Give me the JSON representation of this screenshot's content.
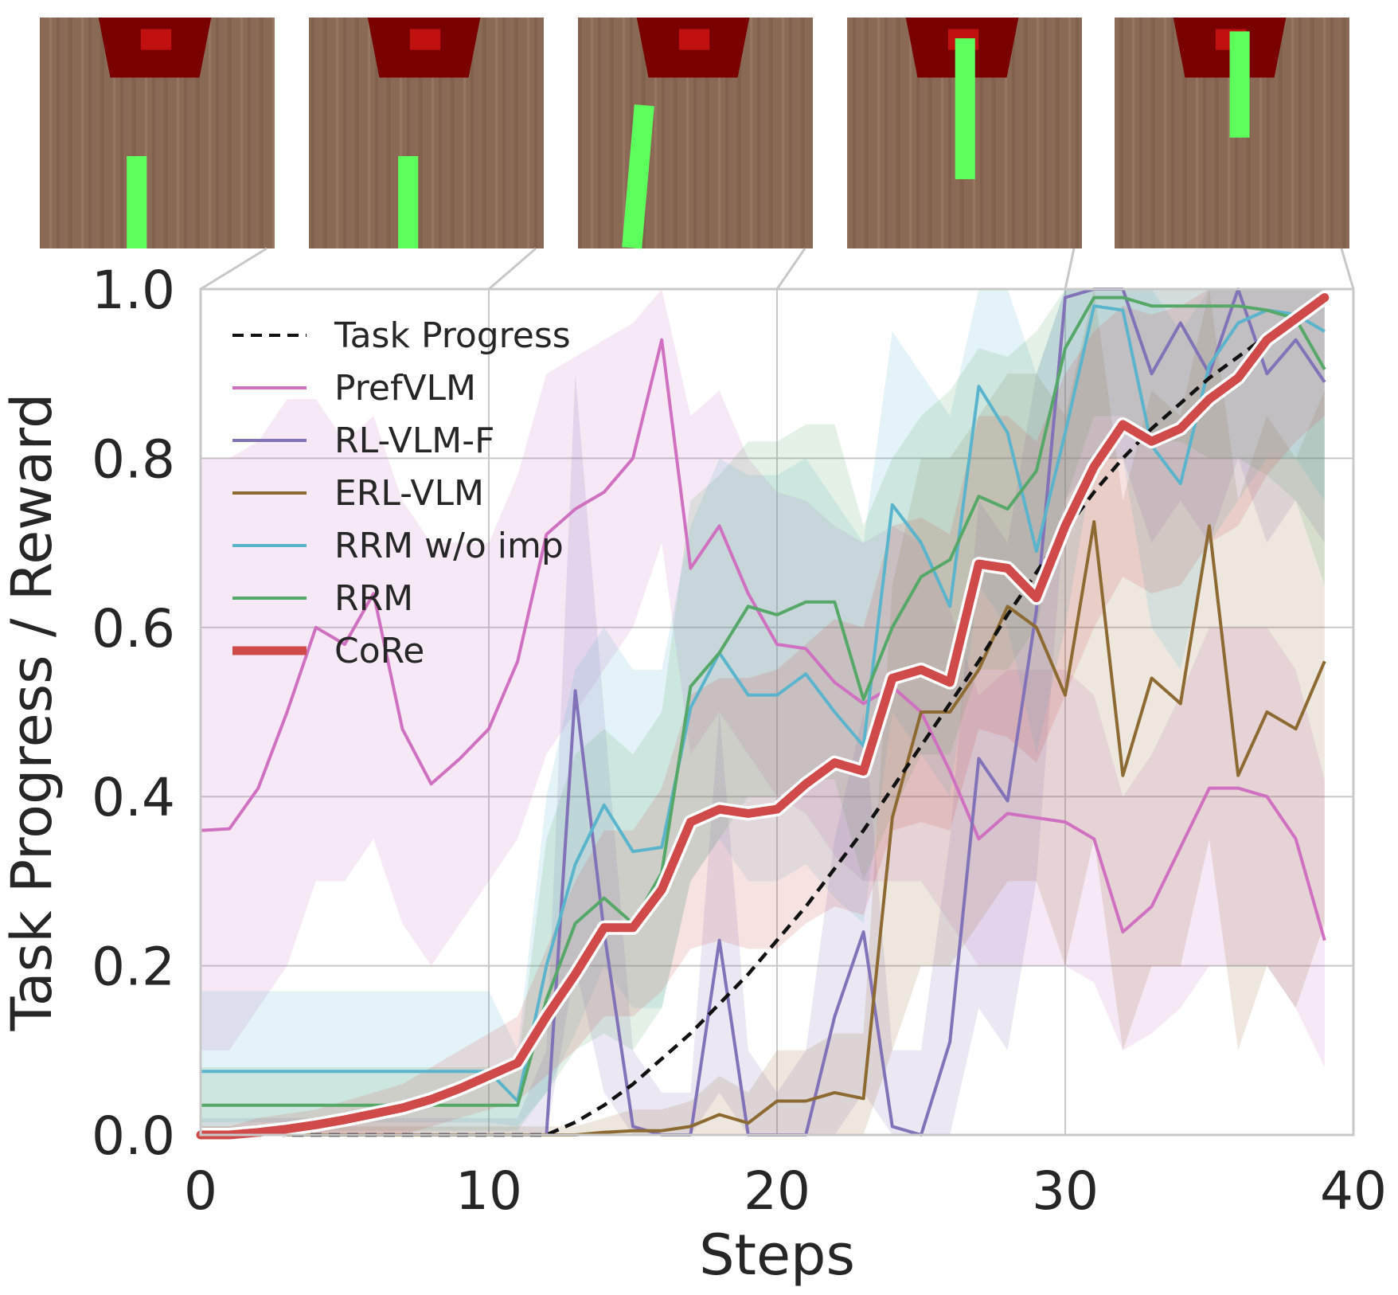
{
  "chart_data": {
    "type": "line",
    "title": "",
    "xlabel": "Steps",
    "ylabel": "Task Progress / Reward",
    "xlim": [
      0,
      40
    ],
    "ylim": [
      0,
      1.0
    ],
    "xticks": [
      "0",
      "10",
      "20",
      "30",
      "40"
    ],
    "yticks": [
      "0.0",
      "0.2",
      "0.4",
      "0.6",
      "0.8",
      "1.0"
    ],
    "grid": true,
    "legend_position": "top-left",
    "x": [
      0,
      1,
      2,
      3,
      4,
      5,
      6,
      7,
      8,
      9,
      10,
      11,
      12,
      13,
      14,
      15,
      16,
      17,
      18,
      19,
      20,
      21,
      22,
      23,
      24,
      25,
      26,
      27,
      28,
      29,
      30,
      31,
      32,
      33,
      34,
      35,
      36,
      37,
      38,
      39
    ],
    "series": [
      {
        "name": "Task Progress",
        "color": "#111111",
        "style": "dashed",
        "values": [
          0,
          0,
          0,
          0,
          0,
          0,
          0,
          0,
          0,
          0,
          0,
          0,
          0,
          0.015,
          0.035,
          0.06,
          0.09,
          0.12,
          0.155,
          0.19,
          0.23,
          0.27,
          0.315,
          0.36,
          0.41,
          0.46,
          0.51,
          0.56,
          0.615,
          0.665,
          0.715,
          0.76,
          0.8,
          0.835,
          0.865,
          0.895,
          0.92,
          0.945,
          0.965,
          0.985
        ]
      },
      {
        "name": "PrefVLM",
        "color": "#d070c0",
        "values": [
          0.36,
          0.362,
          0.41,
          0.5,
          0.6,
          0.58,
          0.64,
          0.48,
          0.415,
          0.445,
          0.48,
          0.56,
          0.71,
          0.74,
          0.76,
          0.8,
          0.94,
          0.67,
          0.72,
          0.64,
          0.58,
          0.575,
          0.535,
          0.51,
          0.53,
          0.5,
          0.43,
          0.35,
          0.38,
          0.375,
          0.37,
          0.35,
          0.24,
          0.27,
          0.34,
          0.41,
          0.41,
          0.4,
          0.35,
          0.23
        ],
        "band_lo": [
          0.1,
          0.1,
          0.15,
          0.2,
          0.3,
          0.3,
          0.35,
          0.25,
          0.2,
          0.25,
          0.3,
          0.35,
          0.45,
          0.5,
          0.55,
          0.6,
          0.7,
          0.45,
          0.5,
          0.45,
          0.4,
          0.38,
          0.33,
          0.3,
          0.3,
          0.3,
          0.25,
          0.2,
          0.2,
          0.2,
          0.2,
          0.18,
          0.1,
          0.12,
          0.15,
          0.2,
          0.2,
          0.2,
          0.15,
          0.08
        ],
        "band_hi": [
          0.8,
          0.8,
          0.82,
          0.87,
          0.87,
          0.82,
          0.85,
          0.75,
          0.7,
          0.7,
          0.7,
          0.78,
          0.9,
          0.92,
          0.94,
          0.96,
          1.0,
          0.85,
          0.88,
          0.8,
          0.76,
          0.75,
          0.72,
          0.7,
          0.72,
          0.7,
          0.62,
          0.52,
          0.55,
          0.55,
          0.55,
          0.52,
          0.4,
          0.45,
          0.52,
          0.6,
          0.6,
          0.6,
          0.55,
          0.42
        ]
      },
      {
        "name": "RL-VLM-F",
        "color": "#8272b8",
        "values": [
          0,
          0,
          0,
          0,
          0,
          0,
          0,
          0,
          0,
          0,
          0,
          0,
          0,
          0.525,
          0.24,
          0.01,
          0,
          0,
          0.23,
          0,
          0,
          0,
          0.14,
          0.24,
          0.01,
          0,
          0.11,
          0.445,
          0.395,
          0.62,
          0.99,
          1.0,
          1.0,
          0.9,
          0.96,
          0.9,
          1.0,
          0.9,
          0.94,
          0.89
        ],
        "band_lo": [
          0,
          0,
          0,
          0,
          0,
          0,
          0,
          0,
          0,
          0,
          0,
          0,
          0,
          0.2,
          0.05,
          0,
          0,
          0,
          0.05,
          0,
          0,
          0,
          0,
          0.05,
          0,
          0,
          0,
          0.15,
          0.1,
          0.3,
          0.75,
          0.8,
          0.8,
          0.7,
          0.75,
          0.7,
          0.8,
          0.7,
          0.75,
          0.7
        ],
        "band_hi": [
          0.02,
          0.02,
          0.02,
          0.02,
          0.02,
          0.02,
          0.02,
          0.02,
          0.02,
          0.02,
          0.02,
          0.02,
          0.1,
          0.9,
          0.5,
          0.1,
          0.05,
          0.05,
          0.5,
          0.1,
          0.05,
          0.1,
          0.35,
          0.5,
          0.1,
          0.1,
          0.35,
          0.75,
          0.7,
          0.9,
          1.0,
          1.0,
          1.0,
          1.0,
          1.0,
          1.0,
          1.0,
          1.0,
          1.0,
          1.0
        ]
      },
      {
        "name": "ERL-VLM",
        "color": "#8c6a32",
        "values": [
          0,
          0,
          0,
          0,
          0,
          0,
          0,
          0,
          0,
          0,
          0,
          0,
          0,
          0,
          0.003,
          0.005,
          0.005,
          0.01,
          0.024,
          0.014,
          0.04,
          0.04,
          0.05,
          0.043,
          0.375,
          0.5,
          0.5,
          0.55,
          0.625,
          0.6,
          0.52,
          0.725,
          0.425,
          0.54,
          0.51,
          0.72,
          0.425,
          0.5,
          0.48,
          0.56
        ],
        "band_lo": [
          0,
          0,
          0,
          0,
          0,
          0,
          0,
          0,
          0,
          0,
          0,
          0,
          0,
          0,
          0,
          0,
          0,
          0,
          0,
          0,
          0,
          0,
          0,
          0,
          0.1,
          0.2,
          0.2,
          0.25,
          0.3,
          0.3,
          0.2,
          0.35,
          0.1,
          0.2,
          0.2,
          0.35,
          0.1,
          0.2,
          0.15,
          0.25
        ],
        "band_hi": [
          0.01,
          0.01,
          0.01,
          0.01,
          0.01,
          0.01,
          0.01,
          0.01,
          0.01,
          0.01,
          0.01,
          0.01,
          0.01,
          0.01,
          0.02,
          0.03,
          0.03,
          0.04,
          0.07,
          0.05,
          0.1,
          0.1,
          0.12,
          0.12,
          0.65,
          0.8,
          0.8,
          0.85,
          0.9,
          0.9,
          0.85,
          1.0,
          0.75,
          0.88,
          0.85,
          1.0,
          0.75,
          0.85,
          0.8,
          0.88
        ]
      },
      {
        "name": "RRM w/o imp",
        "color": "#5ab5cc",
        "values": [
          0.075,
          0.075,
          0.075,
          0.075,
          0.075,
          0.075,
          0.075,
          0.075,
          0.075,
          0.075,
          0.075,
          0.04,
          0.2,
          0.32,
          0.39,
          0.335,
          0.34,
          0.505,
          0.57,
          0.52,
          0.52,
          0.545,
          0.5,
          0.46,
          0.745,
          0.7,
          0.625,
          0.885,
          0.83,
          0.69,
          0.83,
          0.98,
          0.975,
          0.815,
          0.77,
          0.91,
          0.96,
          0.975,
          0.97,
          0.95
        ],
        "band_lo": [
          0.015,
          0.015,
          0.015,
          0.015,
          0.015,
          0.015,
          0.015,
          0.015,
          0.015,
          0.015,
          0.015,
          0.01,
          0.05,
          0.12,
          0.2,
          0.15,
          0.15,
          0.3,
          0.35,
          0.3,
          0.3,
          0.32,
          0.28,
          0.25,
          0.5,
          0.45,
          0.4,
          0.65,
          0.6,
          0.45,
          0.6,
          0.8,
          0.8,
          0.6,
          0.55,
          0.7,
          0.75,
          0.8,
          0.8,
          0.75
        ],
        "band_hi": [
          0.17,
          0.17,
          0.17,
          0.17,
          0.17,
          0.17,
          0.17,
          0.17,
          0.17,
          0.17,
          0.17,
          0.1,
          0.4,
          0.55,
          0.6,
          0.55,
          0.55,
          0.72,
          0.8,
          0.78,
          0.78,
          0.8,
          0.75,
          0.7,
          0.95,
          0.9,
          0.85,
          1.0,
          1.0,
          0.9,
          1.0,
          1.0,
          1.0,
          1.0,
          0.95,
          1.0,
          1.0,
          1.0,
          1.0,
          1.0
        ]
      },
      {
        "name": "RRM",
        "color": "#55a868",
        "values": [
          0.035,
          0.035,
          0.035,
          0.035,
          0.035,
          0.035,
          0.035,
          0.035,
          0.035,
          0.035,
          0.035,
          0.035,
          0.16,
          0.25,
          0.28,
          0.25,
          0.31,
          0.53,
          0.57,
          0.625,
          0.615,
          0.63,
          0.63,
          0.515,
          0.6,
          0.66,
          0.68,
          0.755,
          0.74,
          0.785,
          0.93,
          0.99,
          0.99,
          0.98,
          0.98,
          0.98,
          0.98,
          0.975,
          0.965,
          0.905
        ],
        "band_lo": [
          0.005,
          0.005,
          0.005,
          0.005,
          0.005,
          0.005,
          0.005,
          0.005,
          0.005,
          0.005,
          0.005,
          0.005,
          0.05,
          0.1,
          0.12,
          0.1,
          0.15,
          0.3,
          0.35,
          0.4,
          0.4,
          0.42,
          0.42,
          0.3,
          0.38,
          0.45,
          0.45,
          0.55,
          0.55,
          0.6,
          0.75,
          0.85,
          0.85,
          0.82,
          0.82,
          0.8,
          0.8,
          0.78,
          0.75,
          0.65
        ],
        "band_hi": [
          0.08,
          0.08,
          0.08,
          0.08,
          0.08,
          0.08,
          0.08,
          0.08,
          0.08,
          0.08,
          0.08,
          0.08,
          0.35,
          0.45,
          0.48,
          0.45,
          0.5,
          0.75,
          0.78,
          0.82,
          0.82,
          0.84,
          0.84,
          0.72,
          0.8,
          0.85,
          0.88,
          0.93,
          0.92,
          0.95,
          1.0,
          1.0,
          1.0,
          1.0,
          1.0,
          1.0,
          1.0,
          1.0,
          1.0,
          1.0
        ]
      },
      {
        "name": "CoRe",
        "color": "#d04a4a",
        "values": [
          0,
          0,
          0.003,
          0.007,
          0.012,
          0.018,
          0.025,
          0.032,
          0.042,
          0.055,
          0.07,
          0.085,
          0.14,
          0.19,
          0.245,
          0.245,
          0.29,
          0.37,
          0.385,
          0.38,
          0.385,
          0.415,
          0.44,
          0.43,
          0.54,
          0.55,
          0.535,
          0.675,
          0.67,
          0.635,
          0.72,
          0.79,
          0.84,
          0.82,
          0.835,
          0.87,
          0.895,
          0.94,
          0.965,
          0.99
        ],
        "band_lo": [
          0,
          0,
          0,
          0,
          0,
          0,
          0,
          0,
          0.01,
          0.02,
          0.03,
          0.04,
          0.07,
          0.1,
          0.14,
          0.14,
          0.17,
          0.22,
          0.23,
          0.22,
          0.22,
          0.25,
          0.27,
          0.26,
          0.36,
          0.37,
          0.36,
          0.48,
          0.47,
          0.44,
          0.52,
          0.6,
          0.66,
          0.64,
          0.65,
          0.7,
          0.72,
          0.78,
          0.82,
          0.85
        ],
        "band_hi": [
          0.01,
          0.01,
          0.02,
          0.025,
          0.03,
          0.04,
          0.05,
          0.06,
          0.08,
          0.1,
          0.12,
          0.14,
          0.22,
          0.3,
          0.36,
          0.36,
          0.41,
          0.52,
          0.54,
          0.54,
          0.55,
          0.58,
          0.61,
          0.6,
          0.72,
          0.73,
          0.71,
          0.85,
          0.85,
          0.82,
          0.9,
          0.95,
          0.98,
          0.97,
          0.98,
          1.0,
          1.0,
          1.0,
          1.0,
          1.0
        ]
      }
    ],
    "snapshots": [
      {
        "step": 0,
        "stick_x": 0.37,
        "stick_top": 0.6,
        "stick_bottom": 1.05,
        "tilt": 0
      },
      {
        "step": 10,
        "stick_x": 0.38,
        "stick_top": 0.6,
        "stick_bottom": 1.05,
        "tilt": 0
      },
      {
        "step": 20,
        "stick_x": 0.24,
        "stick_top": 0.38,
        "stick_bottom": 1.05,
        "tilt": 5
      },
      {
        "step": 30,
        "stick_x": 0.46,
        "stick_top": 0.09,
        "stick_bottom": 0.7,
        "tilt": 0
      },
      {
        "step": 40,
        "stick_x": 0.49,
        "stick_top": 0.06,
        "stick_bottom": 0.52,
        "tilt": 0
      }
    ]
  },
  "colors": {
    "grid": "#c8c8c8",
    "text": "#262626",
    "wood": "#8a6a55",
    "target": "#7a0000",
    "target_inner": "#c01010",
    "stick": "#5cff5c"
  }
}
